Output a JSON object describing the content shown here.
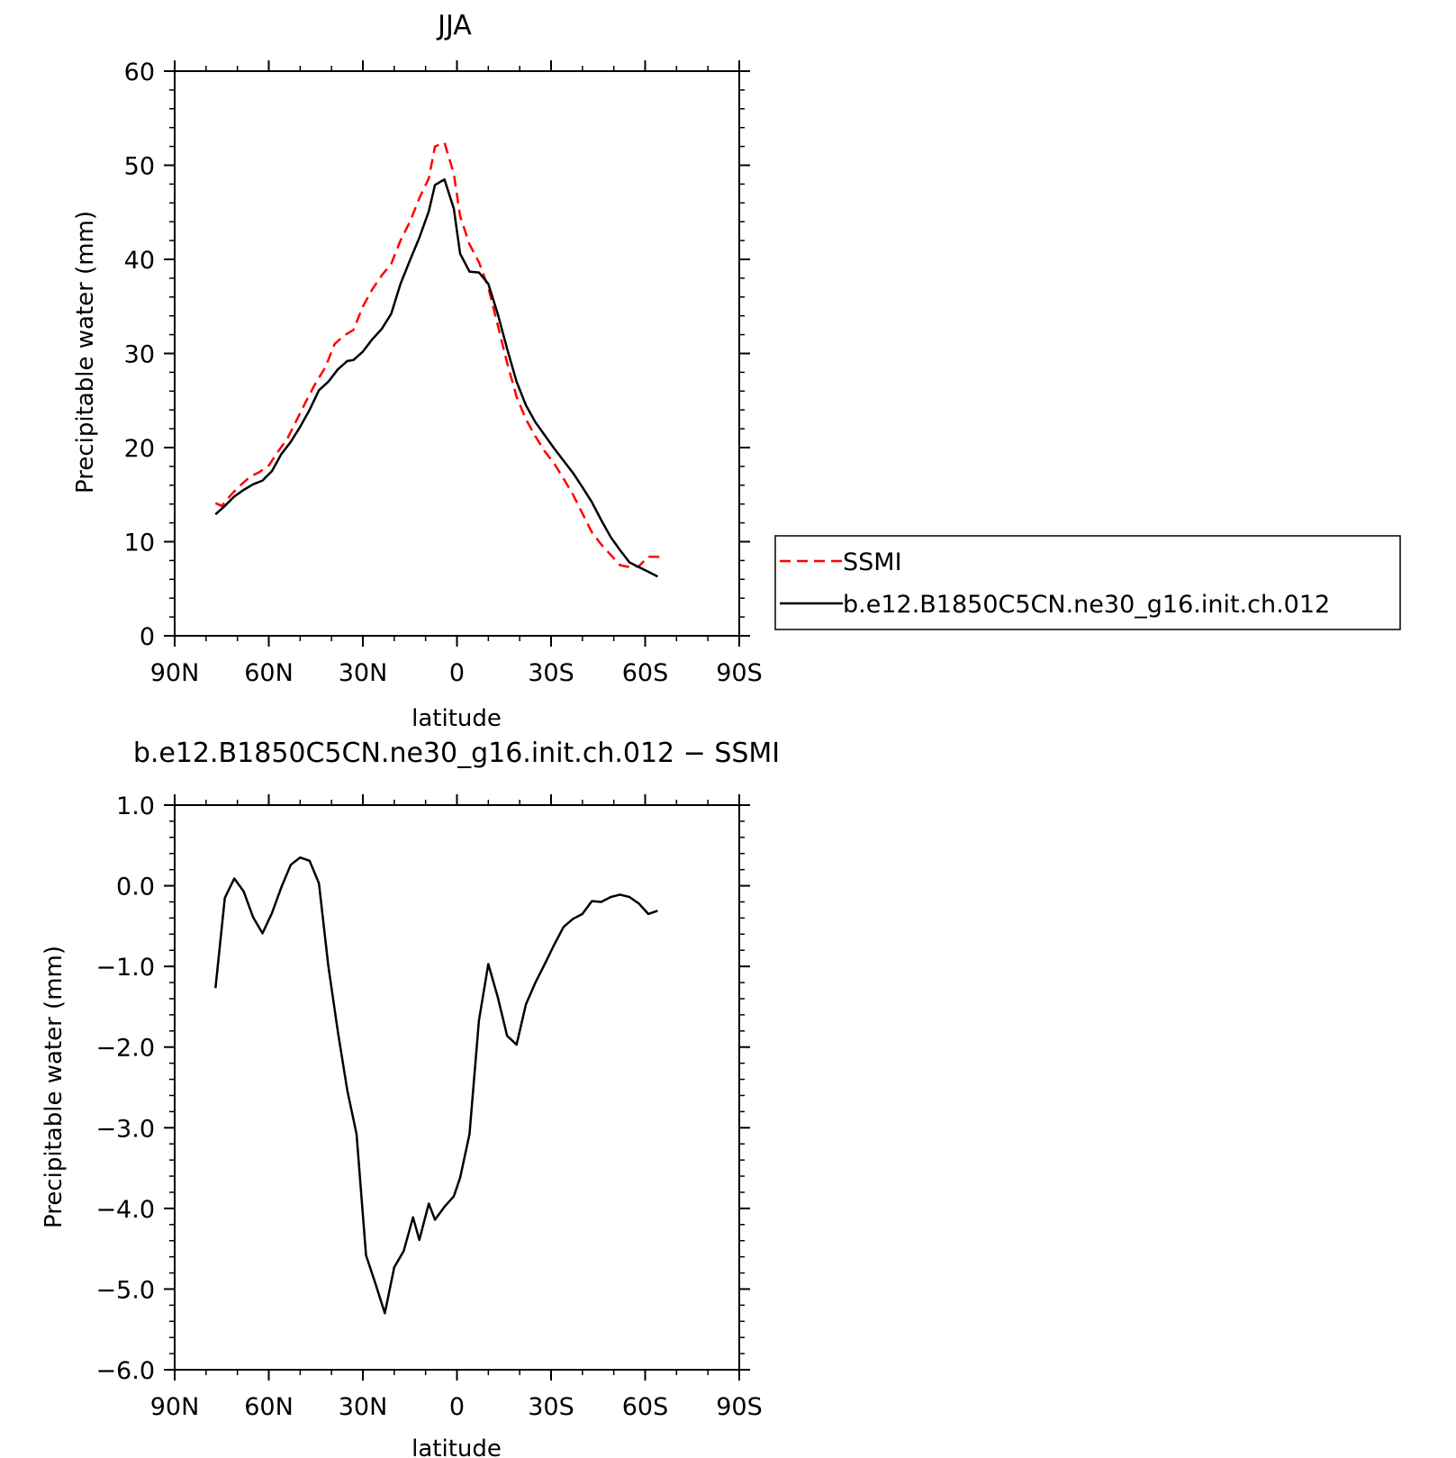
{
  "chart_data": [
    {
      "type": "line",
      "title": "JJA",
      "xlabel": "latitude",
      "ylabel": "Precipitable water (mm)",
      "xlim": [
        90,
        -90
      ],
      "ylim": [
        0,
        60
      ],
      "xticks": [
        90,
        60,
        30,
        0,
        -30,
        -60,
        -90
      ],
      "xtick_labels": [
        "90N",
        "60N",
        "30N",
        "0",
        "30S",
        "60S",
        "90S"
      ],
      "yticks": [
        0,
        10,
        20,
        30,
        40,
        50,
        60
      ],
      "ytick_labels": [
        "0",
        "10",
        "20",
        "30",
        "40",
        "50",
        "60"
      ],
      "grid": false,
      "legend": "outside-right",
      "series": [
        {
          "name": "SSMI",
          "color": "#ff0000",
          "dash": "dashed",
          "x": [
            77,
            75,
            72,
            69,
            66,
            63,
            60,
            57,
            54,
            51,
            48,
            45,
            42,
            39,
            36,
            33,
            30,
            27,
            24,
            21,
            18,
            15,
            12,
            9,
            7,
            4,
            1,
            -1,
            -4,
            -7,
            -10,
            -13,
            -16,
            -19,
            -22,
            -25,
            -28,
            -31,
            -34,
            -37,
            -40,
            -43,
            -46,
            -49,
            -52,
            -55,
            -58,
            -61,
            -64,
            -66
          ],
          "y": [
            14.1,
            13.8,
            15.0,
            16.0,
            16.9,
            17.4,
            18.1,
            19.6,
            21.0,
            23.0,
            25.0,
            26.9,
            28.5,
            31.0,
            31.9,
            32.5,
            35.0,
            36.8,
            38.3,
            39.5,
            42.0,
            44.0,
            46.5,
            48.6,
            52.0,
            52.4,
            49.1,
            44.6,
            41.6,
            39.7,
            37.0,
            33.0,
            29.0,
            25.4,
            23.0,
            21.2,
            19.6,
            18.3,
            16.7,
            15.0,
            13.0,
            11.0,
            9.7,
            8.6,
            7.5,
            7.3,
            7.4,
            8.4,
            8.4,
            8.4
          ]
        },
        {
          "name": "b.e12.B1850C5CN.ne30_g16.init.ch.012",
          "color": "#000000",
          "dash": "solid",
          "x": [
            77,
            74,
            71,
            68,
            65,
            62,
            59,
            56,
            53,
            50,
            47,
            44,
            41,
            38,
            35,
            33,
            30,
            27,
            24,
            21,
            18,
            15,
            12,
            9,
            7,
            4,
            1,
            -1,
            -4,
            -7,
            -10,
            -13,
            -16,
            -19,
            -22,
            -25,
            -28,
            -31,
            -34,
            -37,
            -40,
            -43,
            -46,
            -49,
            -52,
            -55,
            -58,
            -61,
            -64
          ],
          "y": [
            12.9,
            13.8,
            14.8,
            15.5,
            16.1,
            16.5,
            17.5,
            19.3,
            20.6,
            22.2,
            24.0,
            26.1,
            27.0,
            28.3,
            29.2,
            29.3,
            30.2,
            31.5,
            32.6,
            34.2,
            37.4,
            39.9,
            42.3,
            45.1,
            47.9,
            48.5,
            45.4,
            40.6,
            38.7,
            38.6,
            37.4,
            34.2,
            30.5,
            27.0,
            24.5,
            22.7,
            21.3,
            19.9,
            18.6,
            17.3,
            15.8,
            14.2,
            12.3,
            10.5,
            9.1,
            7.8,
            7.3,
            6.8,
            6.3
          ]
        }
      ]
    },
    {
      "type": "line",
      "title": "b.e12.B1850C5CN.ne30_g16.init.ch.012 − SSMI",
      "xlabel": "latitude",
      "ylabel": "Precipitable water (mm)",
      "xlim": [
        90,
        -90
      ],
      "ylim": [
        -6.0,
        1.0
      ],
      "xticks": [
        90,
        60,
        30,
        0,
        -30,
        -60,
        -90
      ],
      "xtick_labels": [
        "90N",
        "60N",
        "30N",
        "0",
        "30S",
        "60S",
        "90S"
      ],
      "yticks": [
        1.0,
        0.0,
        -1.0,
        -2.0,
        -3.0,
        -4.0,
        -5.0,
        -6.0
      ],
      "ytick_labels": [
        "1.0",
        "0.0",
        "−1.0",
        "−2.0",
        "−3.0",
        "−4.0",
        "−5.0",
        "−6.0"
      ],
      "grid": false,
      "series": [
        {
          "color": "#000000",
          "dash": "solid",
          "x": [
            77,
            74,
            71,
            68,
            65,
            62,
            59,
            56,
            53,
            50,
            47,
            44,
            41,
            38,
            35,
            32,
            29,
            26,
            23,
            20,
            17,
            14,
            12,
            9,
            7,
            4,
            1,
            -1,
            -4,
            -7,
            -10,
            -13,
            -16,
            -19,
            -22,
            -25,
            -28,
            -31,
            -34,
            -37,
            -40,
            -43,
            -46,
            -49,
            -52,
            -55,
            -58,
            -61,
            -64
          ],
          "y": [
            -1.27,
            -0.15,
            0.09,
            -0.07,
            -0.39,
            -0.59,
            -0.34,
            -0.02,
            0.26,
            0.35,
            0.31,
            0.03,
            -1.0,
            -1.8,
            -2.53,
            -3.08,
            -4.58,
            -4.93,
            -5.3,
            -4.73,
            -4.53,
            -4.11,
            -4.39,
            -3.94,
            -4.14,
            -3.98,
            -3.85,
            -3.62,
            -3.08,
            -1.67,
            -0.97,
            -1.38,
            -1.86,
            -1.97,
            -1.47,
            -1.2,
            -0.97,
            -0.73,
            -0.51,
            -0.41,
            -0.35,
            -0.19,
            -0.2,
            -0.14,
            -0.11,
            -0.14,
            -0.22,
            -0.35,
            -0.31
          ]
        }
      ]
    }
  ]
}
